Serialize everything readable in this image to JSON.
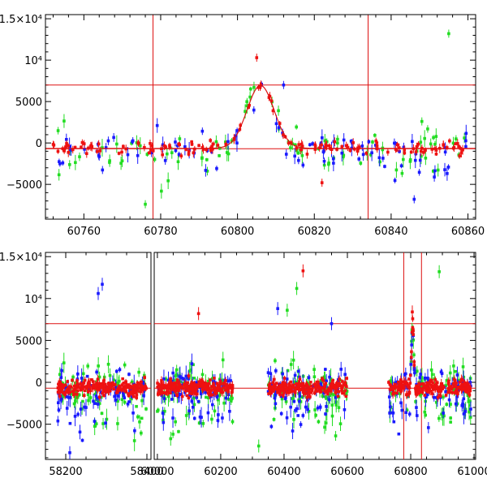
{
  "chart_data": [
    {
      "type": "scatter",
      "title": "",
      "xlabel": "",
      "ylabel": "",
      "xlim": [
        60750,
        60862
      ],
      "ylim": [
        -9200,
        15500
      ],
      "xticks": [
        60760,
        60780,
        60800,
        60820,
        60840,
        60860
      ],
      "yticks": [
        {
          "value": -5000,
          "label": "−5000"
        },
        {
          "value": 0,
          "label": "0"
        },
        {
          "value": 5000,
          "label": "5000"
        },
        {
          "value": 10000,
          "label": "10⁴"
        },
        {
          "value": 15000,
          "label": "1.5×10⁴"
        }
      ],
      "reference_lines": {
        "vertical": [
          60778,
          60834
        ],
        "horizontal": [
          7000,
          -700
        ]
      },
      "model_curve": {
        "type": "peak",
        "center": 60806,
        "amplitude": 7600,
        "baseline": -650,
        "rise_width": 5,
        "decay_width": 5
      },
      "series": [
        {
          "name": "green",
          "color": "#22dd22",
          "scatter": 2400,
          "count": 95
        },
        {
          "name": "blue",
          "color": "#1a1aff",
          "scatter": 1500,
          "count": 95
        },
        {
          "name": "red",
          "color": "#ee1111",
          "scatter": 700,
          "count": 150
        }
      ],
      "outliers": [
        {
          "series": "green",
          "x": 60855,
          "y": 13200
        },
        {
          "series": "red",
          "x": 60805,
          "y": 10300
        },
        {
          "series": "blue",
          "x": 60812,
          "y": 7000
        },
        {
          "series": "green",
          "x": 60848,
          "y": 2600
        },
        {
          "series": "green",
          "x": 60776,
          "y": -7400
        },
        {
          "series": "blue",
          "x": 60846,
          "y": -6800
        },
        {
          "series": "red",
          "x": 60822,
          "y": -4800
        }
      ]
    },
    {
      "type": "scatter",
      "title": "",
      "xlabel": "",
      "ylabel": "",
      "broken_axis": true,
      "segments": [
        {
          "xlim": [
            58150,
            58410
          ],
          "xticks": [
            58200,
            58400
          ]
        },
        {
          "xlim": [
            59990,
            61005
          ],
          "xticks": [
            60000,
            60200,
            60400,
            60600,
            60800,
            61000
          ]
        }
      ],
      "ylim": [
        -9200,
        15500
      ],
      "yticks": [
        {
          "value": -5000,
          "label": "−5000"
        },
        {
          "value": 0,
          "label": "0"
        },
        {
          "value": 5000,
          "label": "5000"
        },
        {
          "value": 10000,
          "label": "10⁴"
        },
        {
          "value": 15000,
          "label": "1.5×10⁴"
        }
      ],
      "reference_lines": {
        "vertical": [
          60778,
          60834
        ],
        "horizontal": [
          7000,
          -700
        ]
      },
      "observing_seasons": [
        {
          "start": 58180,
          "end": 58400
        },
        {
          "start": 60000,
          "end": 60240
        },
        {
          "start": 60350,
          "end": 60600
        },
        {
          "start": 60730,
          "end": 60990
        }
      ],
      "outliers": [
        {
          "series": "blue",
          "x": 58280,
          "y": 10600
        },
        {
          "series": "blue",
          "x": 58290,
          "y": 11700
        },
        {
          "series": "red",
          "x": 60130,
          "y": 8200
        },
        {
          "series": "red",
          "x": 60460,
          "y": 13300
        },
        {
          "series": "green",
          "x": 60440,
          "y": 11200
        },
        {
          "series": "blue",
          "x": 60380,
          "y": 8800
        },
        {
          "series": "green",
          "x": 60410,
          "y": 8600
        },
        {
          "series": "blue",
          "x": 60550,
          "y": 7000
        },
        {
          "series": "green",
          "x": 60890,
          "y": 13200
        },
        {
          "series": "red",
          "x": 60805,
          "y": 8400
        },
        {
          "series": "green",
          "x": 60320,
          "y": -7600
        },
        {
          "series": "blue",
          "x": 58210,
          "y": -8400
        }
      ]
    }
  ]
}
